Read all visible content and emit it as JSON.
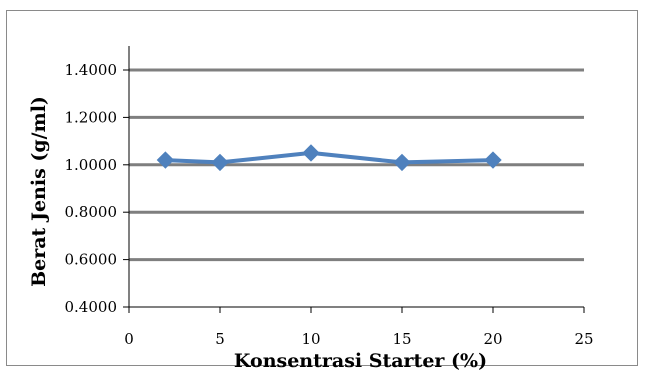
{
  "chart_data": {
    "type": "line",
    "title": "",
    "xlabel": "Konsentrasi Starter (%)",
    "ylabel": "Berat Jenis (g/ml)",
    "xlim": [
      0,
      25
    ],
    "ylim": [
      0.4,
      1.4
    ],
    "x_ticks": [
      "0",
      "5",
      "10",
      "15",
      "20",
      "25"
    ],
    "y_ticks": [
      "0.4000",
      "0.6000",
      "0.8000",
      "1.0000",
      "1.2000",
      "1.4000"
    ],
    "grid": "horizontal",
    "legend": "none",
    "series": [
      {
        "color": "#4f81bd",
        "marker": "diamond",
        "x": [
          2,
          5,
          10,
          15,
          20
        ],
        "y": [
          1.02,
          1.01,
          1.05,
          1.01,
          1.02
        ]
      }
    ]
  }
}
